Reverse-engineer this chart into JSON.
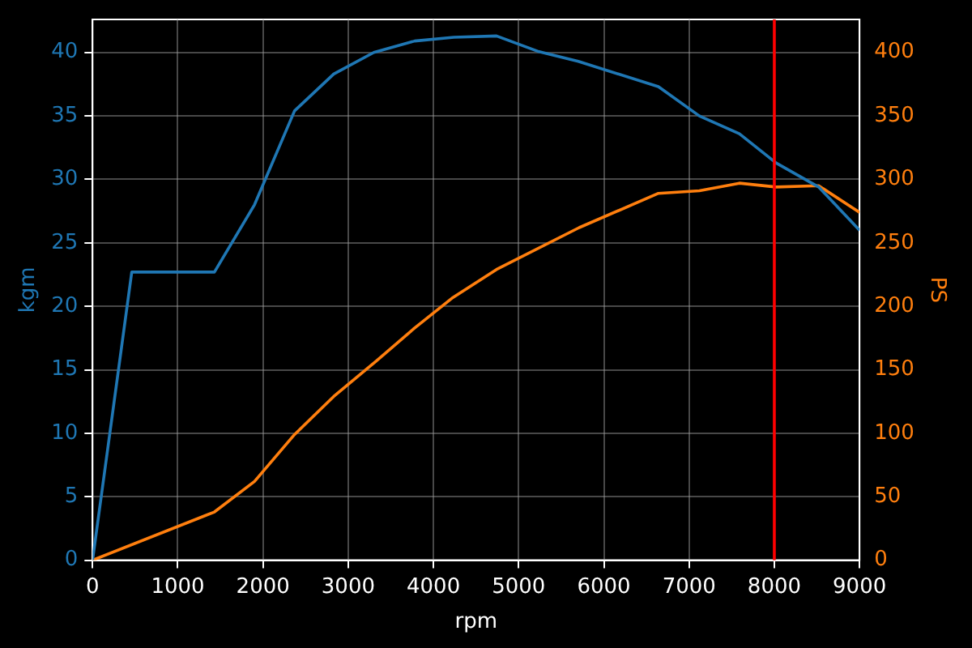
{
  "chart_data": {
    "type": "line",
    "xlabel": "rpm",
    "ylabel": "kgm",
    "y2label": "PS",
    "xlim": [
      0,
      9000
    ],
    "xticks": [
      0,
      1000,
      2000,
      3000,
      4000,
      5000,
      6000,
      7000,
      8000,
      9000
    ],
    "ylim": [
      0,
      42.6
    ],
    "yticks": [
      0,
      5,
      10,
      15,
      20,
      25,
      30,
      35,
      40
    ],
    "y2lim": [
      0,
      426
    ],
    "y2ticks": [
      0,
      50,
      100,
      150,
      200,
      250,
      300,
      350,
      400
    ],
    "grid": true,
    "legend": false,
    "marker": "none",
    "line_style": "solid",
    "series": [
      {
        "color": "#1f77b4",
        "x": [
          0,
          460,
          1430,
          1900,
          2370,
          2830,
          3300,
          3780,
          4240,
          4740,
          5220,
          5700,
          6640,
          7120,
          7590,
          8020,
          8520,
          9000
        ],
        "values": [
          0,
          22.7,
          22.7,
          28,
          35.4,
          38.3,
          40,
          40.9,
          41.2,
          41.3,
          40.1,
          39.3,
          37.3,
          35,
          33.6,
          31.3,
          29.4,
          26
        ]
      },
      {
        "color": "#ff7f0e",
        "axis": "y2",
        "x": [
          0,
          1430,
          1900,
          2370,
          2830,
          3330,
          3780,
          4230,
          4740,
          5710,
          6640,
          7120,
          7590,
          8020,
          8520,
          9000
        ],
        "values": [
          0,
          38,
          62,
          99,
          129,
          157,
          183,
          207,
          229,
          262,
          289,
          291,
          297,
          294,
          295,
          274
        ]
      }
    ],
    "ref_lines": [
      {
        "axis": "x",
        "value": 8000,
        "color": "#ff0000",
        "line_style": "solid"
      }
    ]
  }
}
